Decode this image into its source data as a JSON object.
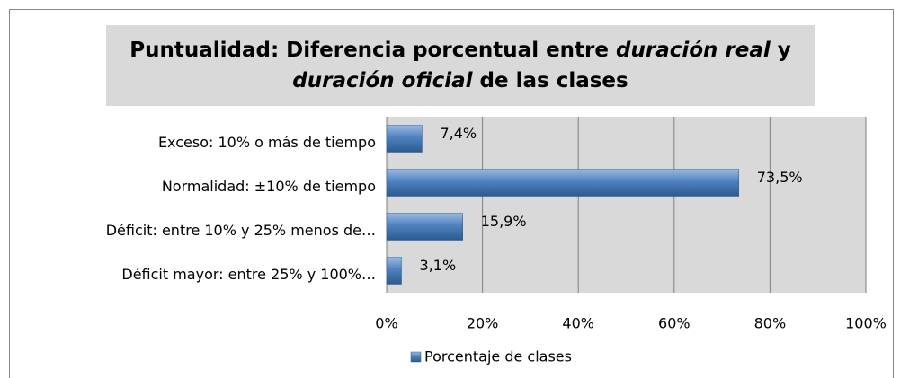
{
  "chart_data": {
    "type": "bar",
    "orientation": "horizontal",
    "title_lines": [
      [
        {
          "text": "Puntualidad: Diferencia porcentual entre ",
          "italic": false
        },
        {
          "text": "duración real",
          "italic": true
        },
        {
          "text": " y",
          "italic": false
        }
      ],
      [
        {
          "text": "duración oficial",
          "italic": true
        },
        {
          "text": " de las clases",
          "italic": false
        }
      ]
    ],
    "categories": [
      "Exceso: 10% o más de tiempo",
      "Normalidad: ±10% de tiempo",
      "Déficit: entre 10% y 25% menos de…",
      "Déficit mayor: entre 25% y 100%…"
    ],
    "series": [
      {
        "name": "Porcentaje de clases",
        "color": "#4f81bd",
        "values": [
          7.4,
          73.5,
          15.9,
          3.1
        ],
        "value_labels": [
          "7,4%",
          "73,5%",
          "15,9%",
          "3,1%"
        ]
      }
    ],
    "xlim": [
      0,
      100
    ],
    "xticks": [
      {
        "value": 0,
        "label": "0%"
      },
      {
        "value": 20,
        "label": "20%"
      },
      {
        "value": 40,
        "label": "40%"
      },
      {
        "value": 60,
        "label": "60%"
      },
      {
        "value": 80,
        "label": "80%"
      },
      {
        "value": 100,
        "label": "100%"
      }
    ],
    "grid": true,
    "legend": "bottom"
  }
}
